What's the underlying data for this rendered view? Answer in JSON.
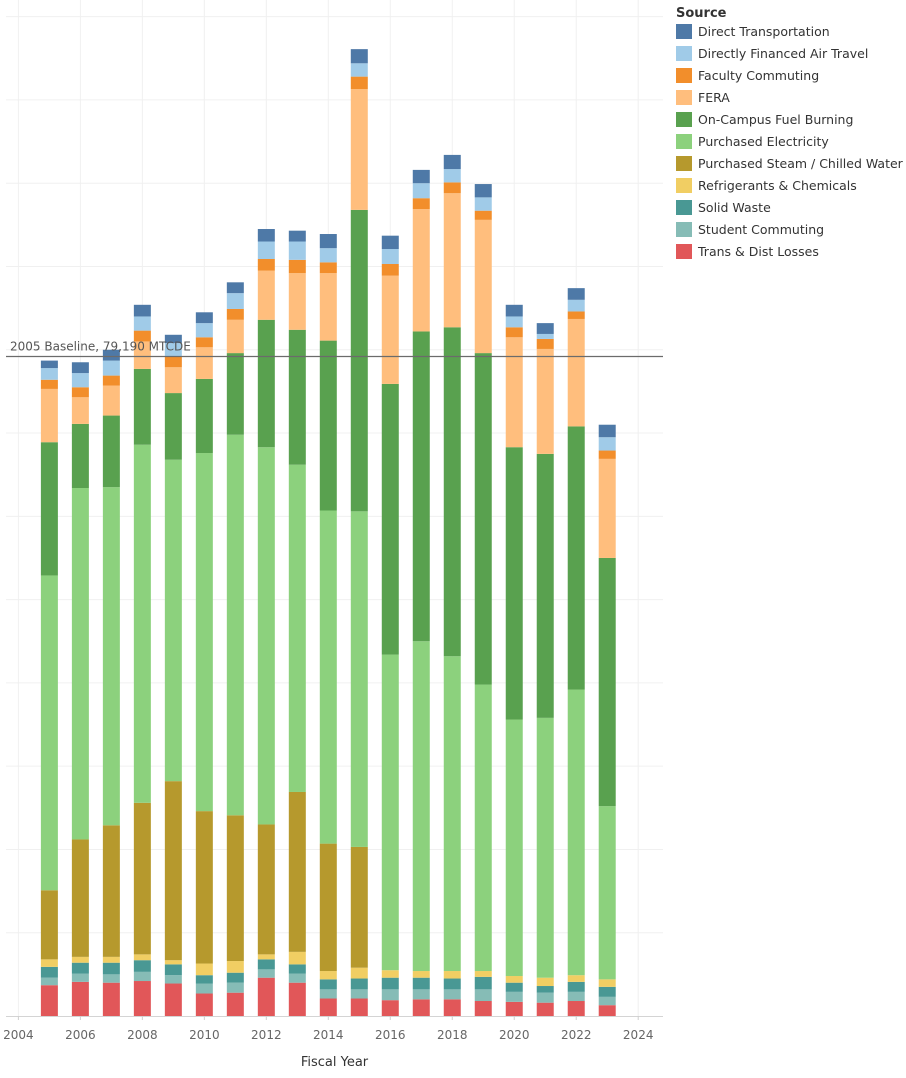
{
  "chart_data": {
    "type": "bar",
    "stacked": true,
    "title": "",
    "xlabel": "Fiscal Year",
    "ylabel": "",
    "x_ticks": [
      "2004",
      "2006",
      "2008",
      "2010",
      "2012",
      "2014",
      "2016",
      "2018",
      "2020",
      "2022",
      "2024"
    ],
    "xlim": [
      2003.6,
      2024.8
    ],
    "ylim": [
      0,
      122000
    ],
    "grid": true,
    "legend_title": "Source",
    "legend_position": "right",
    "baseline": {
      "label": "2005 Baseline, 79,190 MTCDE",
      "value": 79190
    },
    "categories": [
      2005,
      2006,
      2007,
      2008,
      2009,
      2010,
      2011,
      2012,
      2013,
      2014,
      2015,
      2016,
      2017,
      2018,
      2019,
      2020,
      2021,
      2022,
      2023
    ],
    "series": [
      {
        "name": "Trans & Dist Losses",
        "color": "#e15759",
        "values": [
          3700,
          4100,
          4000,
          4200,
          3900,
          2700,
          2800,
          4600,
          4000,
          2100,
          2100,
          1900,
          2000,
          2000,
          1800,
          1700,
          1600,
          1800,
          1300
        ]
      },
      {
        "name": "Student Commuting",
        "color": "#86bcb6",
        "values": [
          900,
          1000,
          1000,
          1100,
          1000,
          1200,
          1200,
          1000,
          1100,
          1100,
          1100,
          1300,
          1200,
          1200,
          1400,
          1200,
          1200,
          1100,
          1000
        ]
      },
      {
        "name": "Solid Waste",
        "color": "#499894",
        "values": [
          1300,
          1300,
          1400,
          1400,
          1300,
          1000,
          1200,
          1200,
          1100,
          1200,
          1300,
          1400,
          1400,
          1300,
          1500,
          1100,
          800,
          1200,
          1200
        ]
      },
      {
        "name": "Refrigerants & Chemicals",
        "color": "#f1ce63",
        "values": [
          900,
          700,
          700,
          700,
          500,
          1400,
          1400,
          600,
          1500,
          1000,
          1300,
          900,
          800,
          900,
          700,
          800,
          1000,
          800,
          900
        ]
      },
      {
        "name": "Purchased Steam / Chilled Water",
        "color": "#b6992d",
        "values": [
          8300,
          14100,
          15800,
          18200,
          21500,
          18300,
          17500,
          15600,
          19200,
          15300,
          14500,
          0,
          0,
          0,
          0,
          0,
          0,
          0,
          0
        ]
      },
      {
        "name": "Purchased Electricity",
        "color": "#8cd17d",
        "values": [
          37800,
          42200,
          40600,
          43000,
          38600,
          43000,
          45700,
          45300,
          39300,
          40000,
          40300,
          37900,
          39600,
          37800,
          34400,
          30800,
          31200,
          34300,
          20800
        ]
      },
      {
        "name": "On-Campus Fuel Burning",
        "color": "#59a14f",
        "values": [
          16000,
          7700,
          8600,
          9100,
          8000,
          8900,
          9800,
          15300,
          16200,
          20400,
          36200,
          32500,
          37200,
          39500,
          39800,
          32700,
          31700,
          31600,
          29800
        ]
      },
      {
        "name": "FERA",
        "color": "#ffbe7d",
        "values": [
          6400,
          3200,
          3600,
          3300,
          3100,
          3800,
          4000,
          5900,
          6800,
          8100,
          14500,
          13000,
          14700,
          16100,
          16000,
          13200,
          12600,
          12900,
          11900
        ]
      },
      {
        "name": "Faculty Commuting",
        "color": "#f28e2b",
        "values": [
          1100,
          1200,
          1200,
          1300,
          1300,
          1200,
          1300,
          1400,
          1600,
          1300,
          1500,
          1400,
          1300,
          1300,
          1100,
          1200,
          1200,
          900,
          1000
        ]
      },
      {
        "name": "Directly Financed Air Travel",
        "color": "#a0cbe8",
        "values": [
          1400,
          1700,
          1800,
          1700,
          1600,
          1700,
          1900,
          2100,
          2200,
          1700,
          1600,
          1800,
          1800,
          1600,
          1600,
          1300,
          600,
          1400,
          1600
        ]
      },
      {
        "name": "Direct Transportation",
        "color": "#4e79a7",
        "values": [
          900,
          1300,
          1300,
          1400,
          1000,
          1300,
          1300,
          1500,
          1300,
          1700,
          1700,
          1600,
          1600,
          1700,
          1600,
          1400,
          1300,
          1400,
          1500
        ]
      }
    ],
    "legend_order": [
      "Direct Transportation",
      "Directly Financed Air Travel",
      "Faculty Commuting",
      "FERA",
      "On-Campus Fuel Burning",
      "Purchased Electricity",
      "Purchased Steam / Chilled Water",
      "Refrigerants & Chemicals",
      "Solid Waste",
      "Student Commuting",
      "Trans & Dist Losses"
    ]
  }
}
